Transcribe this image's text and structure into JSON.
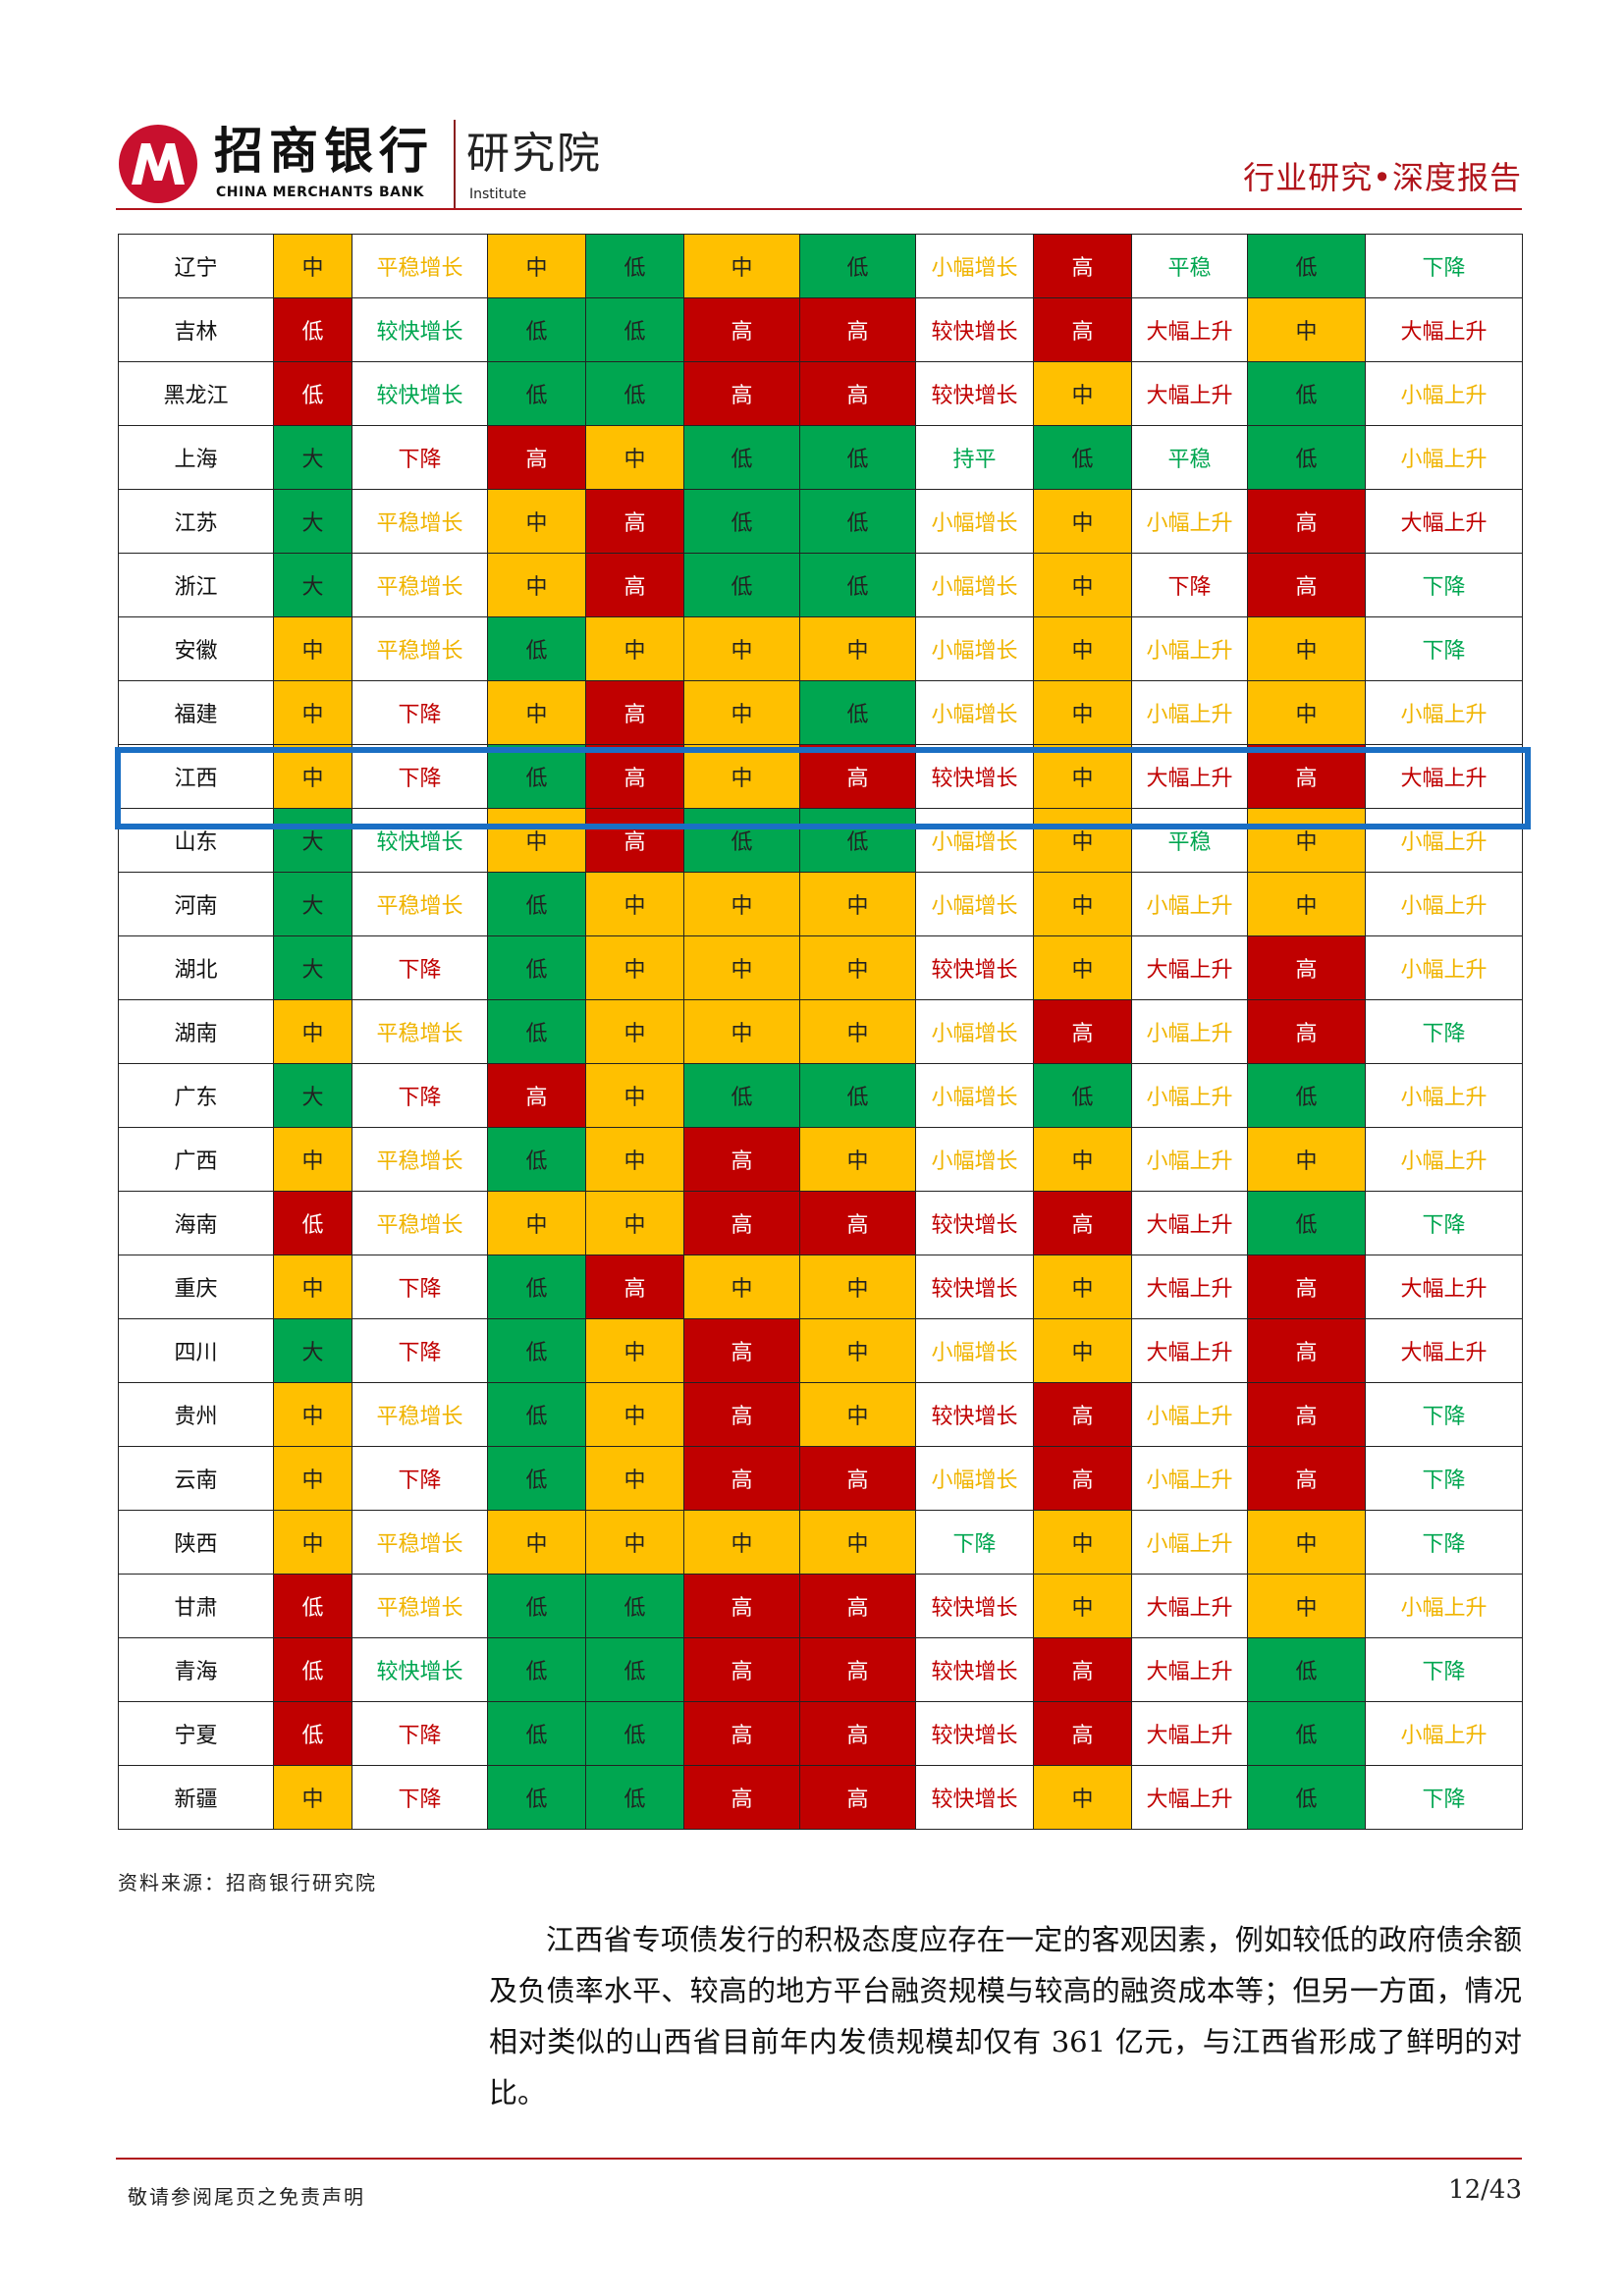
{
  "header": {
    "bank_name_cn": "招商银行",
    "bank_name_en": "CHINA MERCHANTS BANK",
    "institute_cn": "研究院",
    "institute_en": "Institute",
    "report_category": "行业研究•深度报告"
  },
  "colors": {
    "high": "#c00000",
    "mid": "#ffc000",
    "low": "#00a650",
    "highlight": "#1a6fc4"
  },
  "table": {
    "highlighted_row": "江西",
    "rows": [
      [
        "辽宁",
        "中",
        "平稳增长",
        "中",
        "低",
        "中",
        "低",
        "小幅增长",
        "高",
        "平稳",
        "低",
        "下降"
      ],
      [
        "吉林",
        "低",
        "较快增长",
        "低",
        "低",
        "高",
        "高",
        "较快增长",
        "高",
        "大幅上升",
        "中",
        "大幅上升"
      ],
      [
        "黑龙江",
        "低",
        "较快增长",
        "低",
        "低",
        "高",
        "高",
        "较快增长",
        "中",
        "大幅上升",
        "低",
        "小幅上升"
      ],
      [
        "上海",
        "大",
        "下降",
        "高",
        "中",
        "低",
        "低",
        "持平",
        "低",
        "平稳",
        "低",
        "小幅上升"
      ],
      [
        "江苏",
        "大",
        "平稳增长",
        "中",
        "高",
        "低",
        "低",
        "小幅增长",
        "中",
        "小幅上升",
        "高",
        "大幅上升"
      ],
      [
        "浙江",
        "大",
        "平稳增长",
        "中",
        "高",
        "低",
        "低",
        "小幅增长",
        "中",
        "下降",
        "高",
        "下降"
      ],
      [
        "安徽",
        "中",
        "平稳增长",
        "低",
        "中",
        "中",
        "中",
        "小幅增长",
        "中",
        "小幅上升",
        "中",
        "下降"
      ],
      [
        "福建",
        "中",
        "下降",
        "中",
        "高",
        "中",
        "低",
        "小幅增长",
        "中",
        "小幅上升",
        "中",
        "小幅上升"
      ],
      [
        "江西",
        "中",
        "下降",
        "低",
        "高",
        "中",
        "高",
        "较快增长",
        "中",
        "大幅上升",
        "高",
        "大幅上升"
      ],
      [
        "山东",
        "大",
        "较快增长",
        "中",
        "高",
        "低",
        "低",
        "小幅增长",
        "中",
        "平稳",
        "中",
        "小幅上升"
      ],
      [
        "河南",
        "大",
        "平稳增长",
        "低",
        "中",
        "中",
        "中",
        "小幅增长",
        "中",
        "小幅上升",
        "中",
        "小幅上升"
      ],
      [
        "湖北",
        "大",
        "下降",
        "低",
        "中",
        "中",
        "中",
        "较快增长",
        "中",
        "大幅上升",
        "高",
        "小幅上升"
      ],
      [
        "湖南",
        "中",
        "平稳增长",
        "低",
        "中",
        "中",
        "中",
        "小幅增长",
        "高",
        "小幅上升",
        "高",
        "下降"
      ],
      [
        "广东",
        "大",
        "下降",
        "高",
        "中",
        "低",
        "低",
        "小幅增长",
        "低",
        "小幅上升",
        "低",
        "小幅上升"
      ],
      [
        "广西",
        "中",
        "平稳增长",
        "低",
        "中",
        "高",
        "中",
        "小幅增长",
        "中",
        "小幅上升",
        "中",
        "小幅上升"
      ],
      [
        "海南",
        "低",
        "平稳增长",
        "中",
        "中",
        "高",
        "高",
        "较快增长",
        "高",
        "大幅上升",
        "低",
        "下降"
      ],
      [
        "重庆",
        "中",
        "下降",
        "低",
        "高",
        "中",
        "中",
        "较快增长",
        "中",
        "大幅上升",
        "高",
        "大幅上升"
      ],
      [
        "四川",
        "大",
        "下降",
        "低",
        "中",
        "高",
        "中",
        "小幅增长",
        "中",
        "大幅上升",
        "高",
        "大幅上升"
      ],
      [
        "贵州",
        "中",
        "平稳增长",
        "低",
        "中",
        "高",
        "中",
        "较快增长",
        "高",
        "小幅上升",
        "高",
        "下降"
      ],
      [
        "云南",
        "中",
        "下降",
        "低",
        "中",
        "高",
        "高",
        "小幅增长",
        "高",
        "小幅上升",
        "高",
        "下降"
      ],
      [
        "陕西",
        "中",
        "平稳增长",
        "中",
        "中",
        "中",
        "中",
        "下降",
        "中",
        "小幅上升",
        "中",
        "下降"
      ],
      [
        "甘肃",
        "低",
        "平稳增长",
        "低",
        "低",
        "高",
        "高",
        "较快增长",
        "中",
        "大幅上升",
        "中",
        "小幅上升"
      ],
      [
        "青海",
        "低",
        "较快增长",
        "低",
        "低",
        "高",
        "高",
        "较快增长",
        "高",
        "大幅上升",
        "低",
        "下降"
      ],
      [
        "宁夏",
        "低",
        "下降",
        "低",
        "低",
        "高",
        "高",
        "较快增长",
        "高",
        "大幅上升",
        "低",
        "小幅上升"
      ],
      [
        "新疆",
        "中",
        "下降",
        "低",
        "低",
        "高",
        "高",
        "较快增长",
        "中",
        "大幅上升",
        "低",
        "下降"
      ]
    ]
  },
  "source": "资料来源：招商银行研究院",
  "body_paragraph": "江西省专项债发行的积极态度应存在一定的客观因素，例如较低的政府债余额及负债率水平、较高的地方平台融资规模与较高的融资成本等；但另一方面，情况相对类似的山西省目前年内发债规模却仅有 361 亿元，与江西省形成了鲜明的对比。",
  "footer": {
    "disclaimer": "敬请参阅尾页之免责声明",
    "page": "12/43"
  }
}
